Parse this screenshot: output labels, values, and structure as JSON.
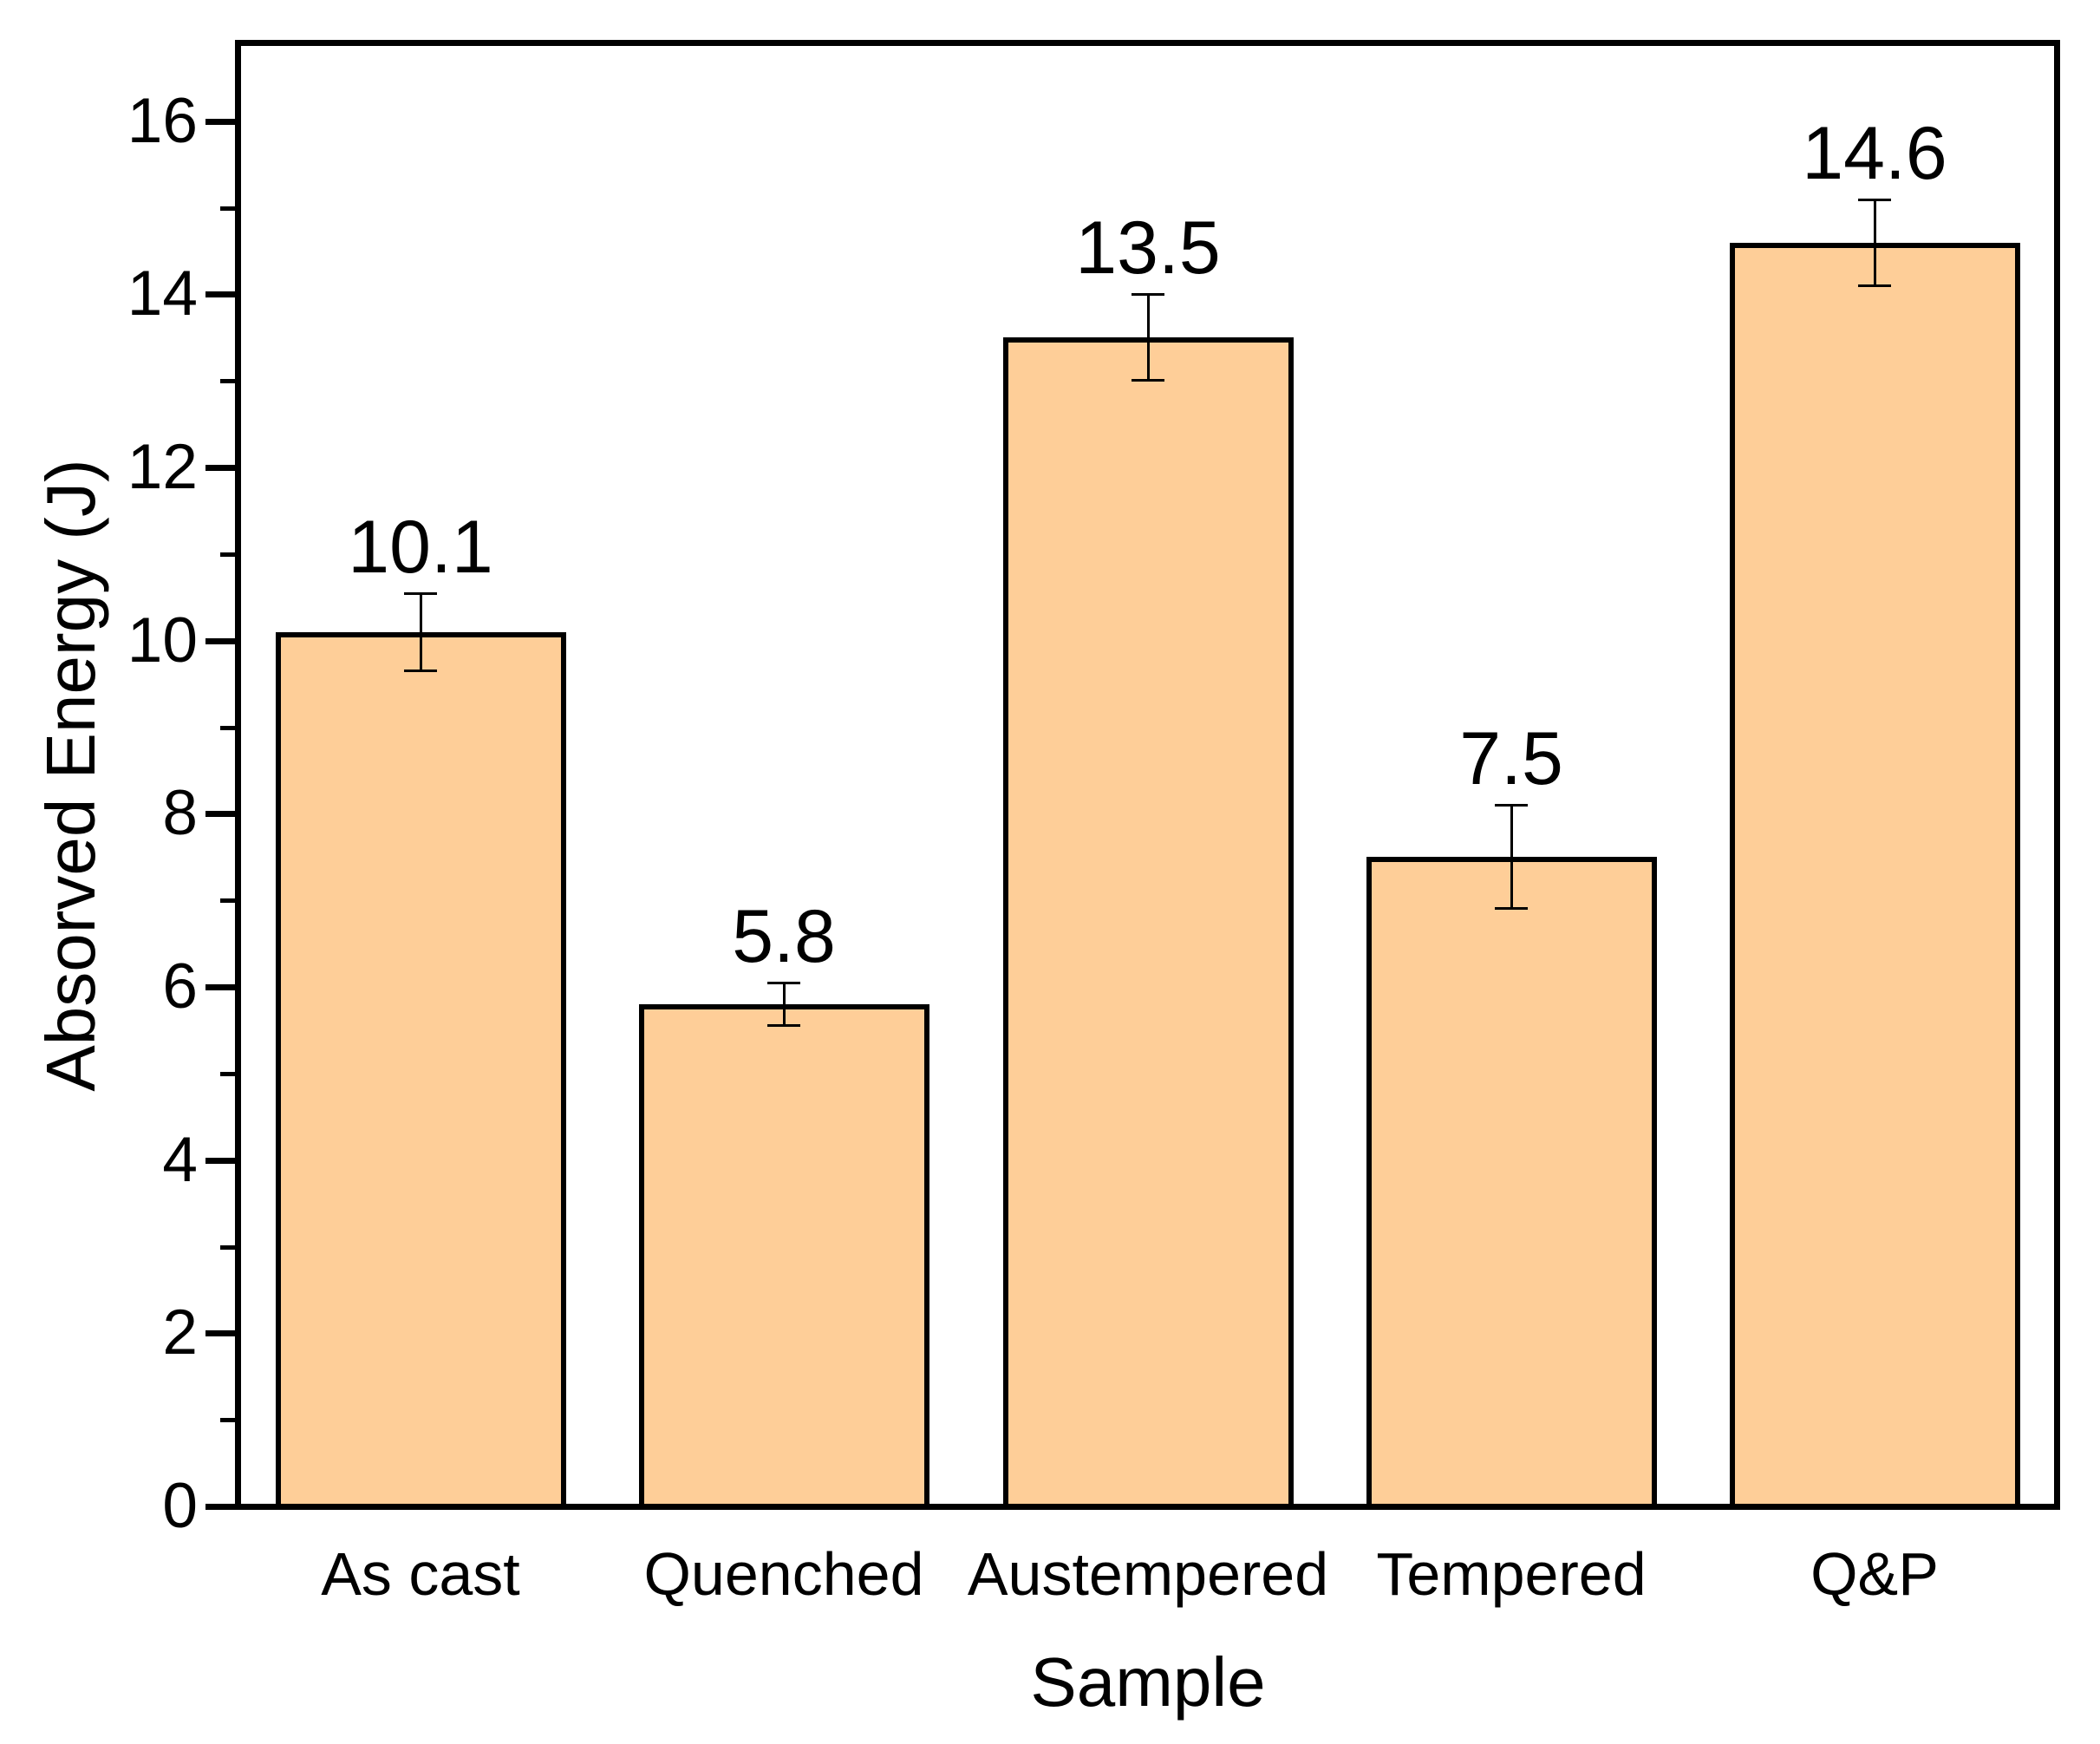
{
  "chart_data": {
    "type": "bar",
    "title": "",
    "xlabel": "Sample",
    "ylabel": "Absorved Energy (J)",
    "categories": [
      "As cast",
      "Quenched",
      "Austempered",
      "Tempered",
      "Q&P"
    ],
    "values": [
      10.1,
      5.8,
      13.5,
      7.5,
      14.6
    ],
    "errors": [
      0.45,
      0.25,
      0.5,
      0.6,
      0.5
    ],
    "value_labels": [
      "10.1",
      "5.8",
      "13.5",
      "7.5",
      "14.6"
    ],
    "ylim": [
      0,
      16.9
    ],
    "y_major_ticks": [
      0,
      2,
      4,
      6,
      8,
      10,
      12,
      14,
      16
    ],
    "y_minor_ticks": [
      1,
      3,
      5,
      7,
      9,
      11,
      13,
      15
    ],
    "grid": false,
    "legend_position": "none",
    "colors": {
      "bar_fill": "#FECE98",
      "bar_border": "#000000",
      "axis": "#000000",
      "text": "#000000",
      "background": "#FFFFFF"
    }
  }
}
